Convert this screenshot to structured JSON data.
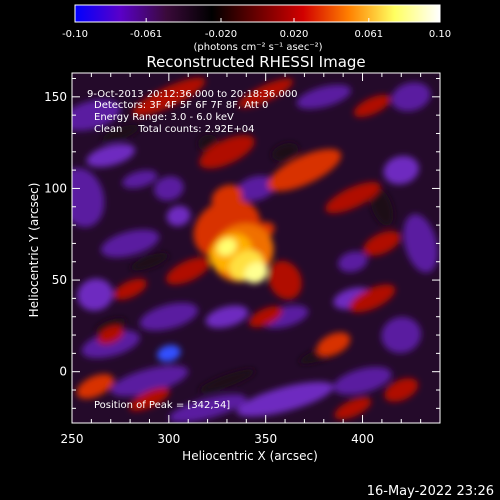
{
  "chart_data": {
    "type": "heatmap",
    "title": "Reconstructed RHESSI Image",
    "xlabel": "Heliocentric X (arcsec)",
    "ylabel": "Heliocentric Y (arcsec)",
    "xlim": [
      250,
      440
    ],
    "ylim": [
      -28,
      163
    ],
    "xticks": [
      250,
      300,
      350,
      400
    ],
    "yticks": [
      0,
      50,
      100,
      150
    ],
    "colorbar": {
      "range": [
        -0.1,
        0.1
      ],
      "ticks": [
        "-0.10",
        "-0.061",
        "-0.020",
        "0.020",
        "0.061",
        "0.10"
      ],
      "label": "(photons cm⁻² s⁻¹ asec⁻²)",
      "colors": [
        "#0000ff",
        "#5a00c8",
        "#3a0a3a",
        "#000000",
        "#6a0000",
        "#d20000",
        "#ff8000",
        "#ffff60",
        "#ffffff"
      ]
    },
    "annotations": {
      "time_range": "9-Oct-2013 20:12:36.000 to 20:18:36.000",
      "detectors": "Detectors: 3F 4F 5F 6F 7F 8F, Att 0",
      "energy": "Energy Range: 3.0 - 6.0 keV",
      "clean": "Clean     Total counts: 2.92E+04",
      "peak": "Position of Peak = [342,54]"
    },
    "peak": [
      342,
      54
    ],
    "footer_date": "16-May-2022 23:26"
  }
}
